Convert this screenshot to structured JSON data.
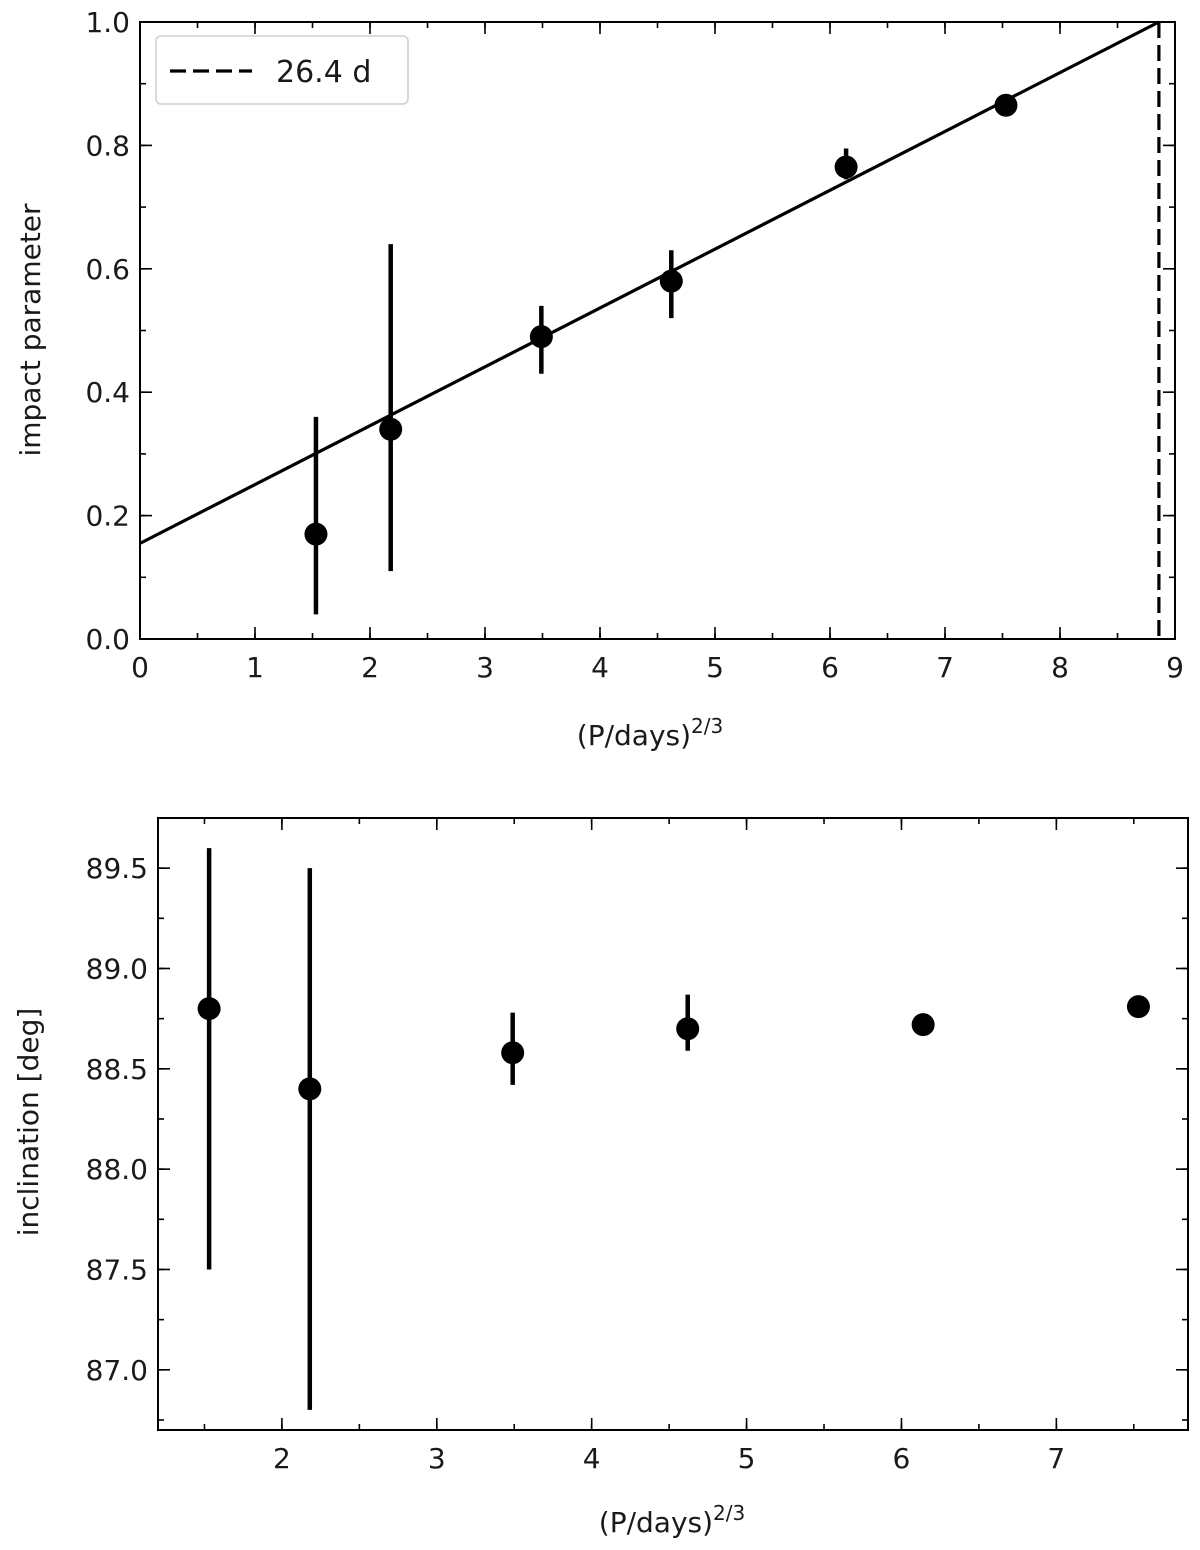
{
  "chart_data": [
    {
      "type": "scatter",
      "xlabel": "(P/days)",
      "xlabel_sup": "2/3",
      "ylabel": "impact parameter",
      "xlim": [
        0,
        9
      ],
      "ylim": [
        0,
        1.0
      ],
      "xticks": [
        0,
        1,
        2,
        3,
        4,
        5,
        6,
        7,
        8,
        9
      ],
      "xtick_labels": [
        "0",
        "1",
        "2",
        "3",
        "4",
        "5",
        "6",
        "7",
        "8",
        "9"
      ],
      "yticks": [
        0,
        0.2,
        0.4,
        0.6,
        0.8,
        1.0
      ],
      "ytick_labels": [
        "0.0",
        "0.2",
        "0.4",
        "0.6",
        "0.8",
        "1.0"
      ],
      "minor_x_step": 0.5,
      "minor_y_step": 0.1,
      "points": [
        {
          "x": 1.53,
          "y": 0.17,
          "ylow": 0.04,
          "yhigh": 0.36
        },
        {
          "x": 2.18,
          "y": 0.34,
          "ylow": 0.11,
          "yhigh": 0.64
        },
        {
          "x": 3.49,
          "y": 0.49,
          "ylow": 0.43,
          "yhigh": 0.54
        },
        {
          "x": 4.62,
          "y": 0.58,
          "ylow": 0.52,
          "yhigh": 0.63
        },
        {
          "x": 6.14,
          "y": 0.765,
          "ylow": 0.745,
          "yhigh": 0.795
        },
        {
          "x": 7.53,
          "y": 0.865,
          "ylow": 0.855,
          "yhigh": 0.875
        }
      ],
      "fit_line": {
        "x": [
          0,
          8.86
        ],
        "y": [
          0.155,
          1.0
        ]
      },
      "vline": {
        "x": 8.86,
        "label": "26.4 d"
      },
      "legend": {
        "position": "upper-left",
        "entries": [
          "26.4 d"
        ]
      }
    },
    {
      "type": "scatter",
      "xlabel": "(P/days)",
      "xlabel_sup": "2/3",
      "ylabel": "inclination [deg]",
      "xlim": [
        1.2,
        7.85
      ],
      "ylim": [
        86.7,
        89.75
      ],
      "xticks": [
        2,
        3,
        4,
        5,
        6,
        7
      ],
      "xtick_labels": [
        "2",
        "3",
        "4",
        "5",
        "6",
        "7"
      ],
      "yticks": [
        87.0,
        87.5,
        88.0,
        88.5,
        89.0,
        89.5
      ],
      "ytick_labels": [
        "87.0",
        "87.5",
        "88.0",
        "88.5",
        "89.0",
        "89.5"
      ],
      "minor_x_step": 0.5,
      "minor_y_step": 0.25,
      "points": [
        {
          "x": 1.53,
          "y": 88.8,
          "ylow": 87.5,
          "yhigh": 89.6
        },
        {
          "x": 2.18,
          "y": 88.4,
          "ylow": 86.8,
          "yhigh": 89.5
        },
        {
          "x": 3.49,
          "y": 88.58,
          "ylow": 88.42,
          "yhigh": 88.78
        },
        {
          "x": 4.62,
          "y": 88.7,
          "ylow": 88.59,
          "yhigh": 88.87
        },
        {
          "x": 6.14,
          "y": 88.72,
          "ylow": 88.7,
          "yhigh": 88.75
        },
        {
          "x": 7.53,
          "y": 88.81,
          "ylow": 88.8,
          "yhigh": 88.83
        }
      ]
    }
  ]
}
